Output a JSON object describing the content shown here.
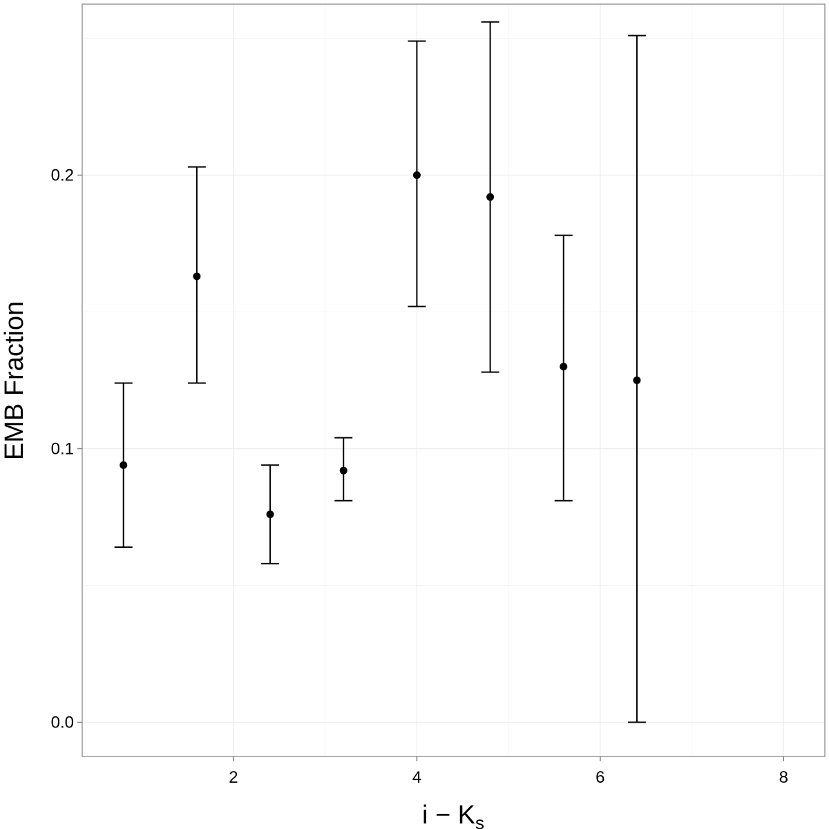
{
  "chart_data": {
    "type": "scatter",
    "title": "",
    "xlabel": "i − K",
    "xlabel_subscript": "s",
    "ylabel": "EMB Fraction",
    "xlim": [
      0.35,
      8.45
    ],
    "ylim": [
      -0.0125,
      0.2625
    ],
    "x_ticks": [
      2,
      4,
      6,
      8
    ],
    "x_tick_labels": [
      "2",
      "4",
      "6",
      "8"
    ],
    "y_ticks": [
      0.0,
      0.1,
      0.2
    ],
    "y_tick_labels": [
      "0.0",
      "0.1",
      "0.2"
    ],
    "grid": true,
    "legend": "none",
    "points": [
      {
        "x": 0.8,
        "y": 0.094,
        "ymin": 0.064,
        "ymax": 0.124
      },
      {
        "x": 1.6,
        "y": 0.163,
        "ymin": 0.124,
        "ymax": 0.203
      },
      {
        "x": 2.4,
        "y": 0.076,
        "ymin": 0.058,
        "ymax": 0.094
      },
      {
        "x": 3.2,
        "y": 0.092,
        "ymin": 0.081,
        "ymax": 0.104
      },
      {
        "x": 4.0,
        "y": 0.2,
        "ymin": 0.152,
        "ymax": 0.249
      },
      {
        "x": 4.8,
        "y": 0.192,
        "ymin": 0.128,
        "ymax": 0.256
      },
      {
        "x": 5.6,
        "y": 0.13,
        "ymin": 0.081,
        "ymax": 0.178
      },
      {
        "x": 6.4,
        "y": 0.125,
        "ymin": 0.0,
        "ymax": 0.251
      }
    ],
    "colors": {
      "background": "#ffffff",
      "grid": "#ebebeb",
      "frame": "#7f7f7f",
      "marks": "#000000"
    }
  }
}
